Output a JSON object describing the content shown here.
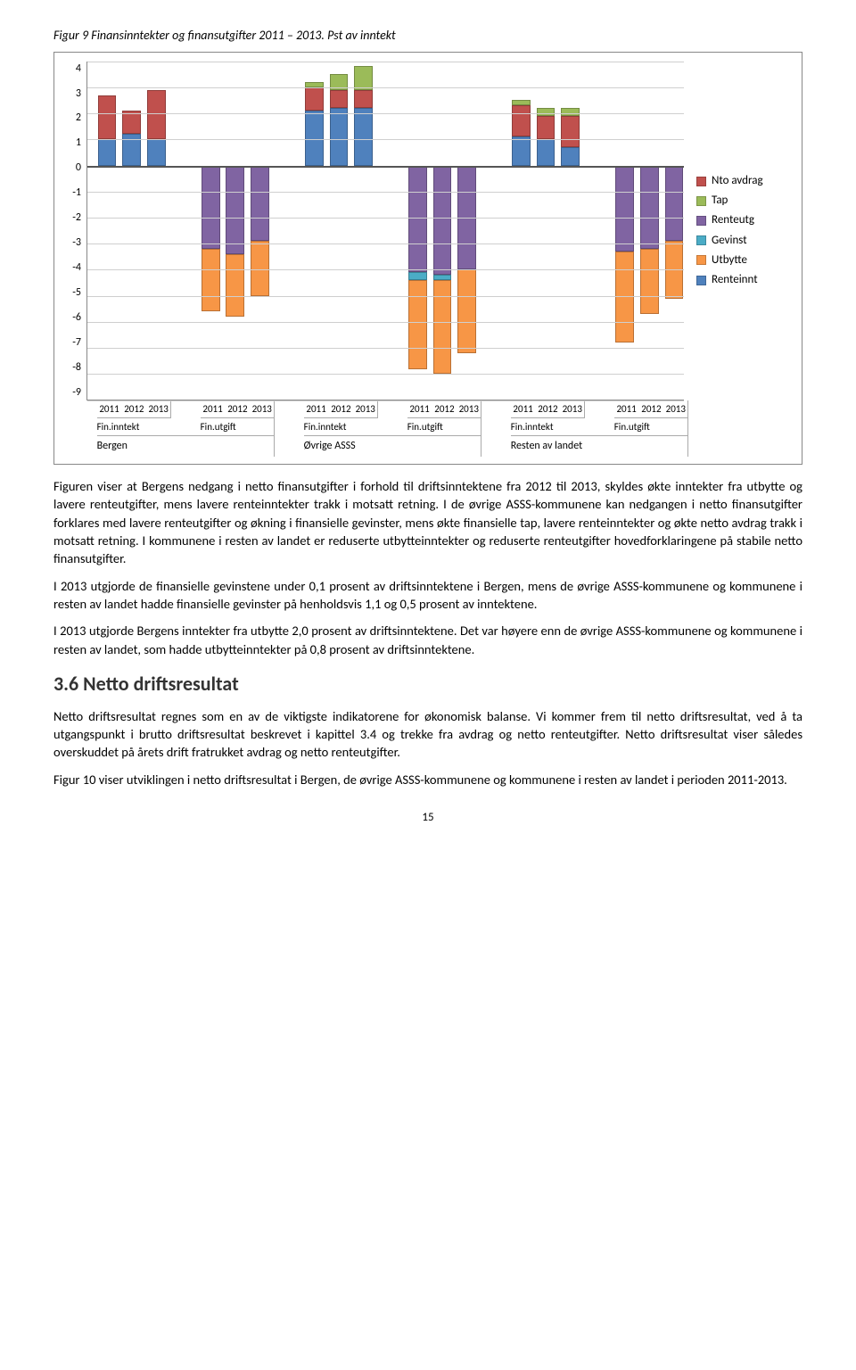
{
  "figure_title": "Figur 9 Finansinntekter og finansutgifter 2011 – 2013. Pst av inntekt",
  "chart": {
    "type": "stacked-bar",
    "ylim": [
      -9,
      4
    ],
    "yticks": [
      4,
      3,
      2,
      1,
      0,
      -1,
      -2,
      -3,
      -4,
      -5,
      -6,
      -7,
      -8,
      -9
    ],
    "series": {
      "nto_avdrag": {
        "label": "Nto avdrag",
        "color": "#c0504d"
      },
      "tap": {
        "label": "Tap",
        "color": "#9bbb59"
      },
      "renteutg": {
        "label": "Renteutg",
        "color": "#8064a2"
      },
      "gevinst": {
        "label": "Gevinst",
        "color": "#4bacc6"
      },
      "utbytte": {
        "label": "Utbytte",
        "color": "#f79646"
      },
      "renteinnt": {
        "label": "Renteinnt",
        "color": "#4f81bd"
      }
    },
    "top_groups": [
      "Bergen",
      "Øvrige ASSS",
      "Resten av landet"
    ],
    "sub_groups": [
      "Fin.inntekt",
      "Fin.utgift",
      "Fin.inntekt",
      "Fin.utgift",
      "Fin.inntekt",
      "Fin.utgift"
    ],
    "years": [
      "2011",
      "2012",
      "2013",
      "2011",
      "2012",
      "2013",
      "2011",
      "2012",
      "2013",
      "2011",
      "2012",
      "2013",
      "2011",
      "2012",
      "2013",
      "2011",
      "2012",
      "2013"
    ],
    "bars": [
      {
        "pos": [
          {
            "series": "renteinnt",
            "val": 1.0
          },
          {
            "series": "nto_avdrag",
            "val": 1.7
          }
        ],
        "neg": []
      },
      {
        "pos": [
          {
            "series": "renteinnt",
            "val": 1.2
          },
          {
            "series": "nto_avdrag",
            "val": 0.9
          }
        ],
        "neg": []
      },
      {
        "pos": [
          {
            "series": "renteinnt",
            "val": 1.0
          },
          {
            "series": "nto_avdrag",
            "val": 1.9
          }
        ],
        "neg": []
      },
      {
        "pos": [],
        "neg": [
          {
            "series": "renteutg",
            "val": 3.2
          },
          {
            "series": "utbytte",
            "val": 2.4
          }
        ]
      },
      {
        "pos": [],
        "neg": [
          {
            "series": "renteutg",
            "val": 3.4
          },
          {
            "series": "utbytte",
            "val": 2.4
          }
        ]
      },
      {
        "pos": [],
        "neg": [
          {
            "series": "renteutg",
            "val": 2.9
          },
          {
            "series": "utbytte",
            "val": 2.1
          }
        ]
      },
      {
        "pos": [
          {
            "series": "renteinnt",
            "val": 2.1
          },
          {
            "series": "nto_avdrag",
            "val": 0.9
          },
          {
            "series": "tap",
            "val": 0.2
          }
        ],
        "neg": []
      },
      {
        "pos": [
          {
            "series": "renteinnt",
            "val": 2.2
          },
          {
            "series": "nto_avdrag",
            "val": 0.7
          },
          {
            "series": "tap",
            "val": 0.6
          }
        ],
        "neg": []
      },
      {
        "pos": [
          {
            "series": "renteinnt",
            "val": 2.2
          },
          {
            "series": "nto_avdrag",
            "val": 0.7
          },
          {
            "series": "tap",
            "val": 0.9
          }
        ],
        "neg": []
      },
      {
        "pos": [],
        "neg": [
          {
            "series": "renteutg",
            "val": 4.1
          },
          {
            "series": "gevinst",
            "val": 0.3
          },
          {
            "series": "utbytte",
            "val": 3.4
          }
        ]
      },
      {
        "pos": [],
        "neg": [
          {
            "series": "renteutg",
            "val": 4.2
          },
          {
            "series": "gevinst",
            "val": 0.2
          },
          {
            "series": "utbytte",
            "val": 3.6
          }
        ]
      },
      {
        "pos": [],
        "neg": [
          {
            "series": "renteutg",
            "val": 4.0
          },
          {
            "series": "utbytte",
            "val": 3.2
          }
        ]
      },
      {
        "pos": [
          {
            "series": "renteinnt",
            "val": 1.1
          },
          {
            "series": "nto_avdrag",
            "val": 1.2
          },
          {
            "series": "tap",
            "val": 0.2
          }
        ],
        "neg": []
      },
      {
        "pos": [
          {
            "series": "renteinnt",
            "val": 1.0
          },
          {
            "series": "nto_avdrag",
            "val": 0.9
          },
          {
            "series": "tap",
            "val": 0.3
          }
        ],
        "neg": []
      },
      {
        "pos": [
          {
            "series": "renteinnt",
            "val": 0.7
          },
          {
            "series": "nto_avdrag",
            "val": 1.2
          },
          {
            "series": "tap",
            "val": 0.3
          }
        ],
        "neg": []
      },
      {
        "pos": [],
        "neg": [
          {
            "series": "renteutg",
            "val": 3.3
          },
          {
            "series": "utbytte",
            "val": 3.5
          }
        ]
      },
      {
        "pos": [],
        "neg": [
          {
            "series": "renteutg",
            "val": 3.2
          },
          {
            "series": "utbytte",
            "val": 2.5
          }
        ]
      },
      {
        "pos": [],
        "neg": [
          {
            "series": "renteutg",
            "val": 2.9
          },
          {
            "series": "utbytte",
            "val": 2.2
          }
        ]
      }
    ]
  },
  "paragraphs": [
    "Figuren viser at Bergens nedgang i netto finansutgifter i forhold til driftsinntektene fra 2012 til 2013, skyldes økte inntekter fra utbytte og lavere renteutgifter, mens lavere renteinntekter trakk i motsatt retning. I de øvrige ASSS-kommunene kan nedgangen i netto finansutgifter forklares med lavere renteutgifter og økning i finansielle gevinster, mens økte finansielle tap, lavere renteinntekter og økte netto avdrag trakk i motsatt retning. I kommunene i resten av landet er reduserte utbytteinntekter og reduserte renteutgifter hovedforklaringene på stabile netto finansutgifter.",
    "I 2013 utgjorde de finansielle gevinstene under 0,1 prosent av driftsinntektene i Bergen, mens de øvrige ASSS-kommunene og kommunene i resten av landet hadde finansielle gevinster på henholdsvis 1,1 og 0,5 prosent av inntektene.",
    "I 2013 utgjorde Bergens inntekter fra utbytte 2,0 prosent av driftsinntektene. Det var høyere enn de øvrige ASSS-kommunene og kommunene i resten av landet, som hadde utbytteinntekter på 0,8 prosent av driftsinntektene."
  ],
  "section_heading": "3.6  Netto driftsresultat",
  "post_heading_paragraphs": [
    "Netto driftsresultat regnes som en av de viktigste indikatorene for økonomisk balanse. Vi kommer frem til netto driftsresultat, ved å ta utgangspunkt i brutto driftsresultat beskrevet i kapittel 3.4 og trekke fra avdrag og netto renteutgifter. Netto driftsresultat viser således overskuddet på årets drift fratrukket avdrag og netto renteutgifter.",
    "Figur 10 viser utviklingen i netto driftsresultat i Bergen, de øvrige ASSS-kommunene og kommunene i resten av landet i perioden 2011-2013."
  ],
  "page_number": "15"
}
